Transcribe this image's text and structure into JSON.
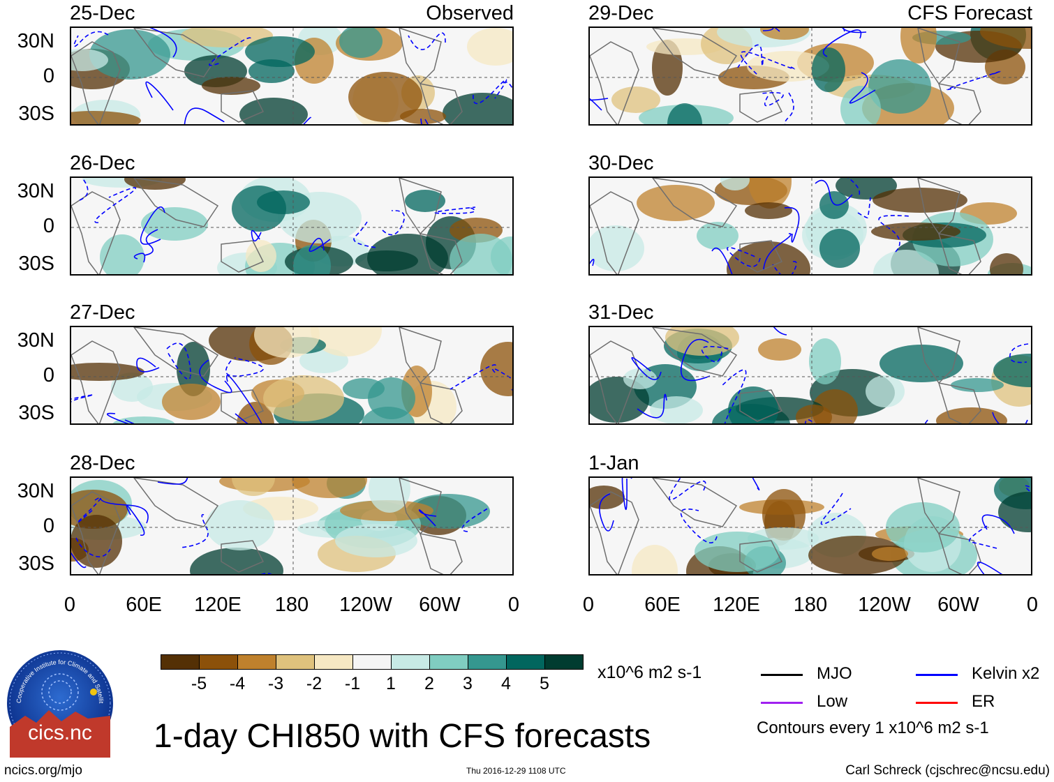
{
  "panels_left": [
    {
      "date": "25-Dec",
      "corner": "Observed"
    },
    {
      "date": "26-Dec",
      "corner": ""
    },
    {
      "date": "27-Dec",
      "corner": ""
    },
    {
      "date": "28-Dec",
      "corner": ""
    }
  ],
  "panels_right": [
    {
      "date": "29-Dec",
      "corner": "CFS Forecast"
    },
    {
      "date": "30-Dec",
      "corner": ""
    },
    {
      "date": "31-Dec",
      "corner": ""
    },
    {
      "date": "1-Jan",
      "corner": ""
    }
  ],
  "lat_labels": [
    "30N",
    "0",
    "30S"
  ],
  "lon_labels": [
    "0",
    "60E",
    "120E",
    "180",
    "120W",
    "60W",
    "0"
  ],
  "colorbar": {
    "colors": [
      "#543005",
      "#8c510a",
      "#bf812d",
      "#dfc27d",
      "#f6e8c3",
      "#f5f5f5",
      "#c7eae5",
      "#80cdc1",
      "#35978f",
      "#01665e",
      "#003c30"
    ],
    "labels": [
      "-5",
      "-4",
      "-3",
      "-2",
      "-1",
      "1",
      "2",
      "3",
      "4",
      "5"
    ],
    "units": "x10^6 m2 s-1"
  },
  "legend": {
    "items": [
      {
        "label": "MJO",
        "color": "#000000"
      },
      {
        "label": "Kelvin x2",
        "color": "#0000ff"
      },
      {
        "label": "Low",
        "color": "#a020f0"
      },
      {
        "label": "ER",
        "color": "#ff0000"
      }
    ],
    "note": "Contours every 1 x10^6 m2 s-1"
  },
  "logo": {
    "arc_text": "Cooperative Institute for Climate and Satellites",
    "name": "cics.nc"
  },
  "title": "1-day CHI850 with CFS forecasts",
  "footer": {
    "left": "ncics.org/mjo",
    "center": "Thu 2016-12-29 1108 UTC",
    "right": "Carl Schreck (cjschrec@ncsu.edu)"
  }
}
